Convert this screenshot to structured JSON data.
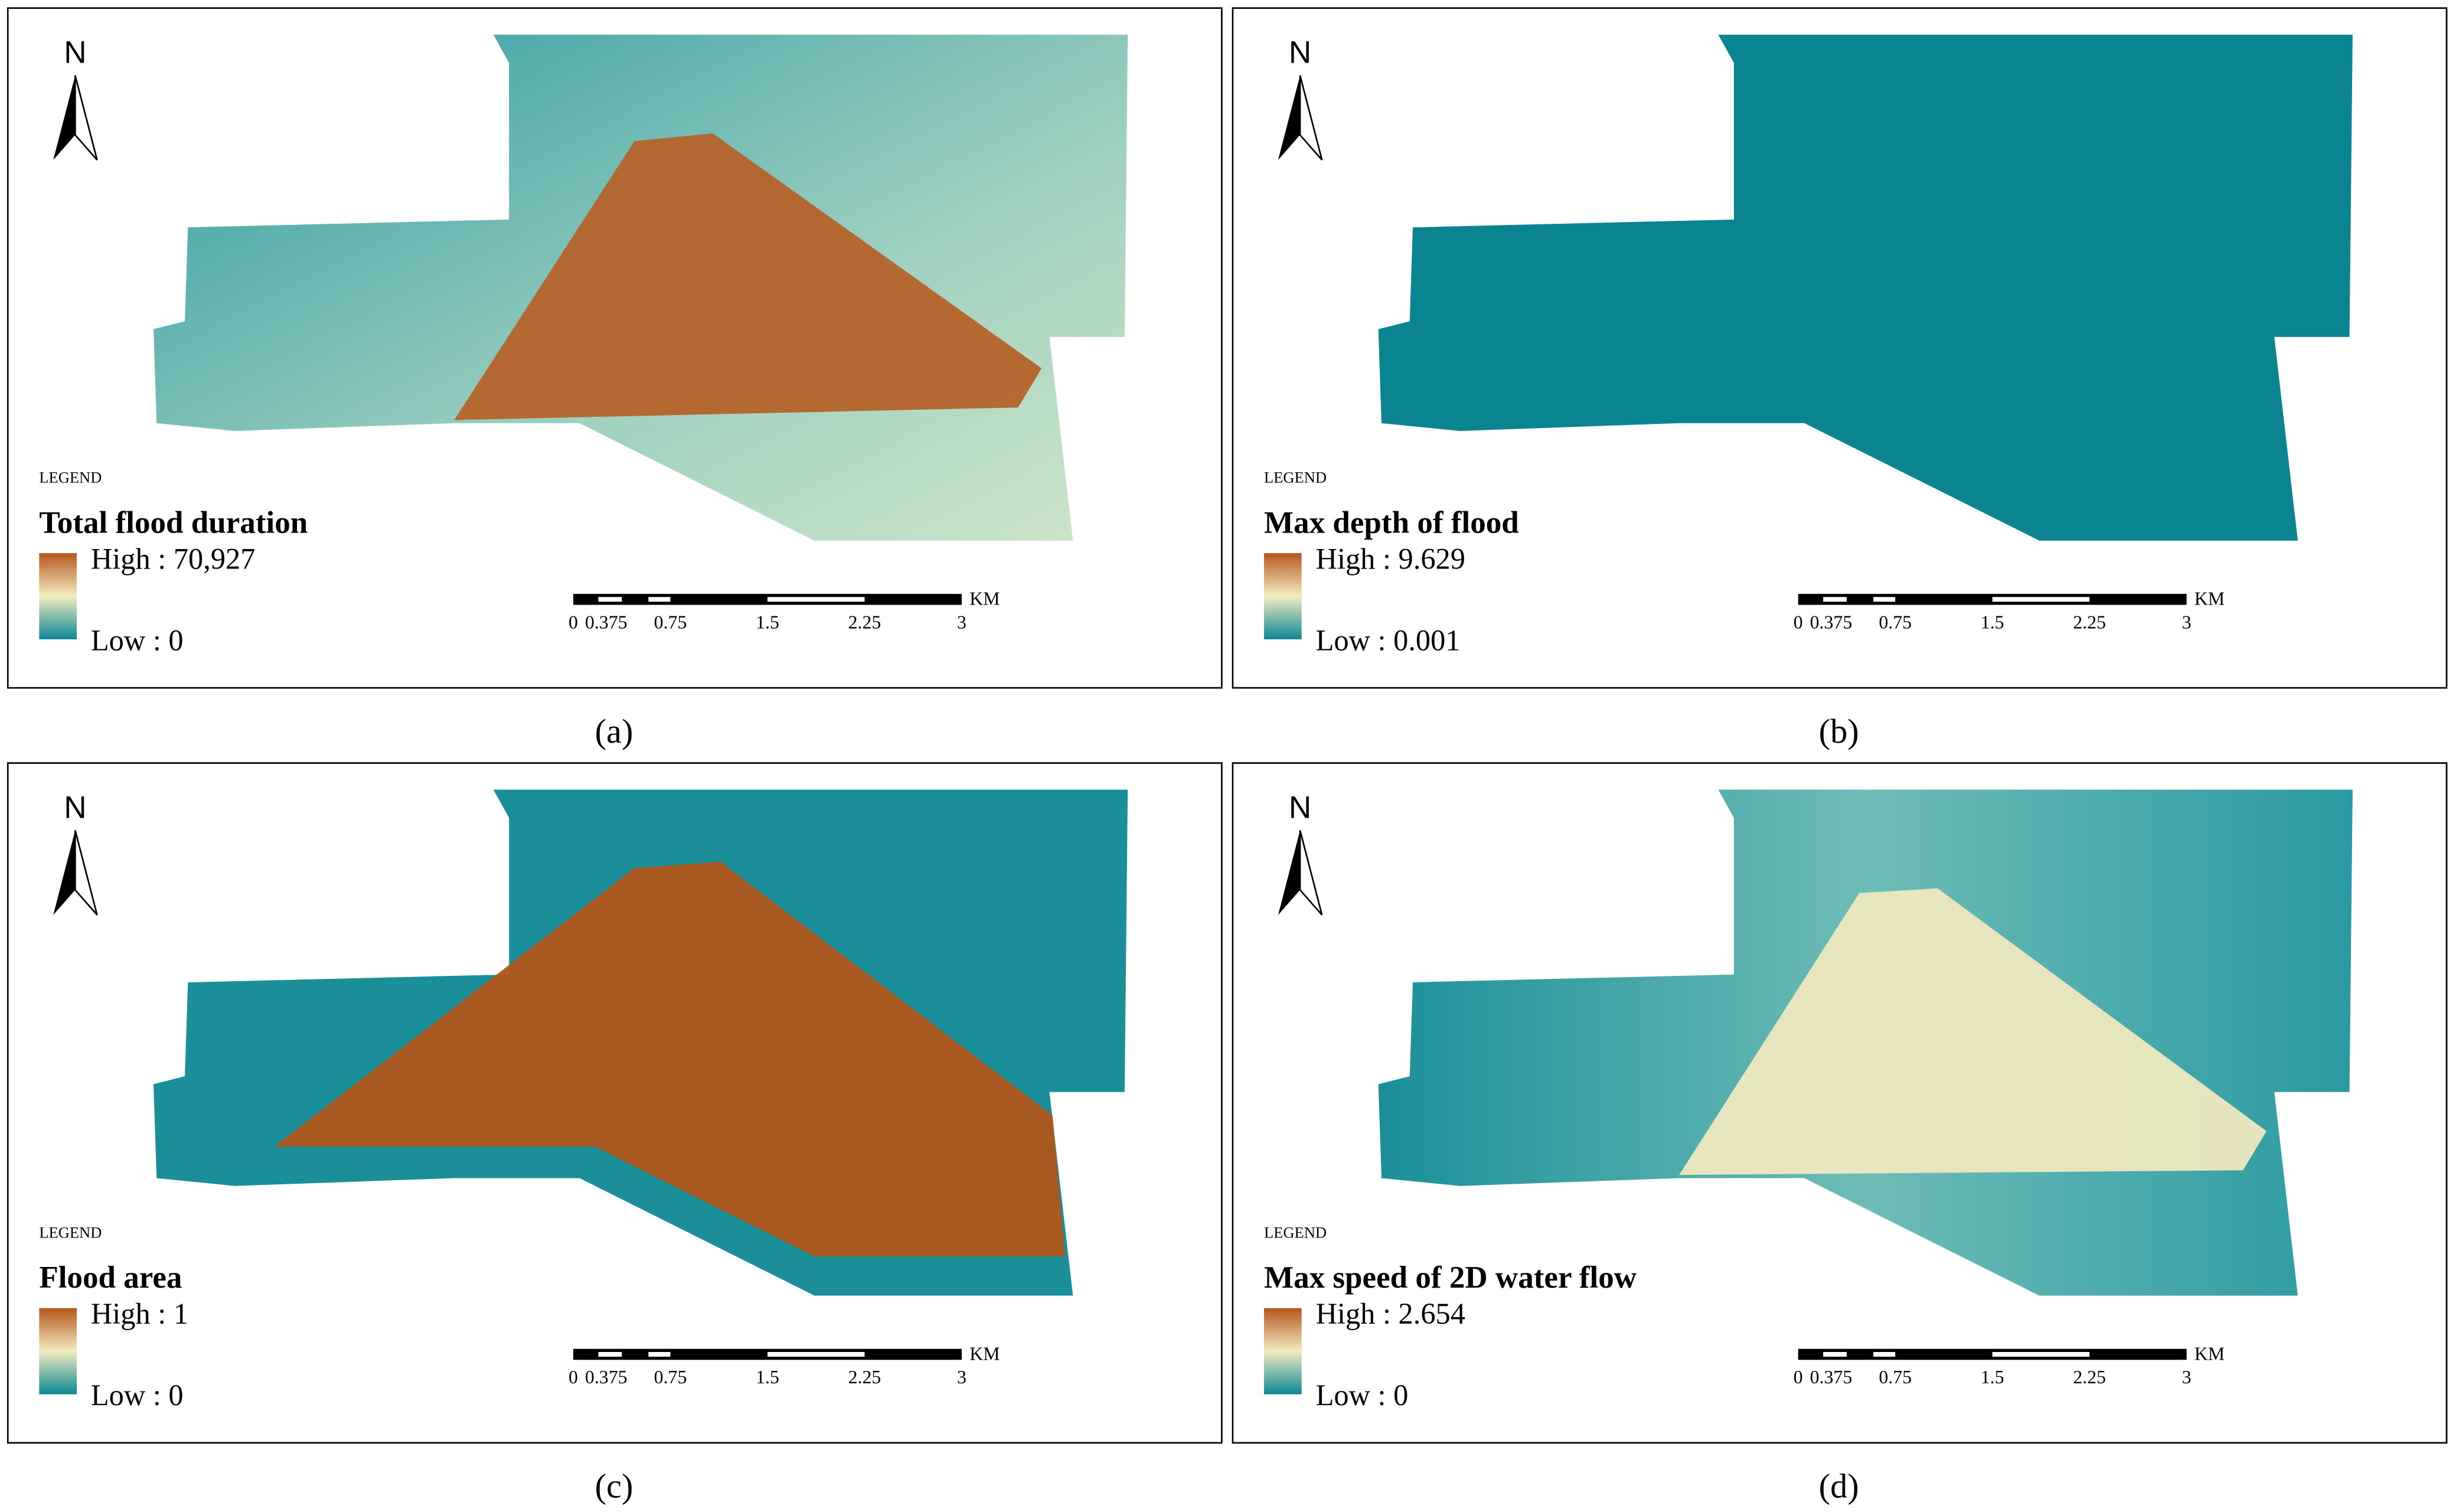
{
  "legend_heading": "LEGEND",
  "north": "N",
  "scale": {
    "unit": "KM",
    "labels": [
      "0",
      "0.375",
      "0.75",
      "1.5",
      "2.25",
      "3"
    ]
  },
  "panels": [
    {
      "title": "Total flood duration",
      "high": "High : 70,927",
      "low": "Low : 0",
      "caption": "(a)"
    },
    {
      "title": "Max depth of flood",
      "high": "High : 9.629",
      "low": "Low : 0.001",
      "caption": "(b)"
    },
    {
      "title": "Flood area",
      "high": "High : 1",
      "low": "Low : 0",
      "caption": "(c)"
    },
    {
      "title": "Max speed of 2D water flow",
      "high": "High : 2.654",
      "low": "Low : 0",
      "caption": "(d)"
    }
  ]
}
